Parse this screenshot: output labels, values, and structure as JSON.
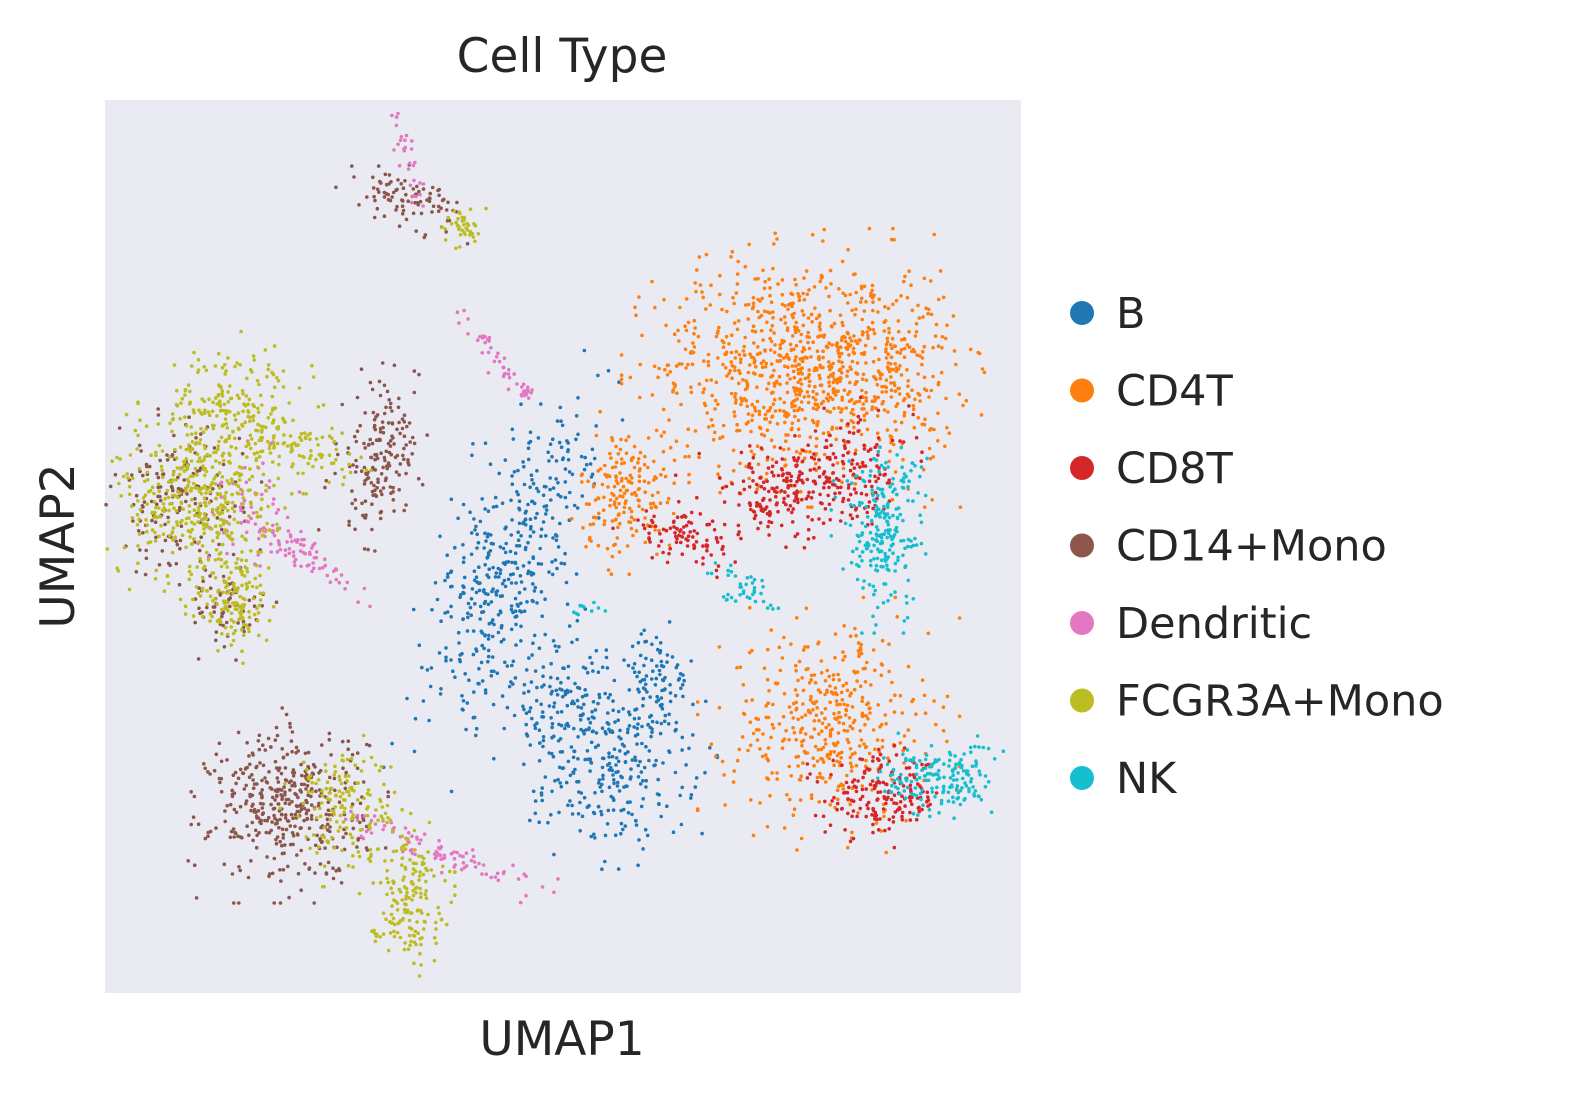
{
  "chart_data": {
    "type": "scatter",
    "title": "Cell Type",
    "xlabel": "UMAP1",
    "ylabel": "UMAP2",
    "xlim": [
      0,
      100
    ],
    "ylim": [
      0,
      100
    ],
    "grid": false,
    "ticks": false,
    "background": "#eaeaf2",
    "legend_placement": "center-right outside",
    "series": [
      {
        "name": "B",
        "color": "#1f77b4",
        "clusters": [
          {
            "cx": 44,
            "cy": 48,
            "sx": 3.2,
            "sy": 10,
            "n": 420,
            "rot": -0.35
          },
          {
            "cx": 56,
            "cy": 25,
            "sx": 4.2,
            "sy": 4.2,
            "n": 260,
            "rot": 0.2
          },
          {
            "cx": 60,
            "cy": 35,
            "sx": 2.2,
            "sy": 3.0,
            "n": 80,
            "rot": 0
          },
          {
            "cx": 50,
            "cy": 33,
            "sx": 3.5,
            "sy": 4.0,
            "n": 150,
            "rot": -0.6
          }
        ]
      },
      {
        "name": "CD4T",
        "color": "#ff7f0e",
        "clusters": [
          {
            "cx": 72,
            "cy": 70,
            "sx": 6.0,
            "sy": 6.0,
            "n": 520,
            "rot": 0
          },
          {
            "cx": 83,
            "cy": 70,
            "sx": 5.0,
            "sy": 6.0,
            "n": 480,
            "rot": 0
          },
          {
            "cx": 57,
            "cy": 56,
            "sx": 2.6,
            "sy": 3.5,
            "n": 180,
            "rot": 0
          },
          {
            "cx": 79,
            "cy": 30,
            "sx": 5.5,
            "sy": 5.5,
            "n": 420,
            "rot": 0
          }
        ]
      },
      {
        "name": "CD8T",
        "color": "#d62728",
        "clusters": [
          {
            "cx": 74,
            "cy": 56,
            "sx": 4.5,
            "sy": 2.5,
            "n": 190,
            "rot": 0
          },
          {
            "cx": 82,
            "cy": 59,
            "sx": 3.0,
            "sy": 3.0,
            "n": 120,
            "rot": 0
          },
          {
            "cx": 63,
            "cy": 51,
            "sx": 3.0,
            "sy": 1.2,
            "n": 90,
            "rot": -0.3
          },
          {
            "cx": 85,
            "cy": 22,
            "sx": 3.2,
            "sy": 2.2,
            "n": 180,
            "rot": 0
          }
        ]
      },
      {
        "name": "CD14+Mono",
        "color": "#8c564b",
        "clusters": [
          {
            "cx": 30,
            "cy": 60,
            "sx": 2.0,
            "sy": 4.0,
            "n": 180,
            "rot": -0.2
          },
          {
            "cx": 33,
            "cy": 89,
            "sx": 3.0,
            "sy": 1.4,
            "n": 90,
            "rot": -0.3
          },
          {
            "cx": 20,
            "cy": 21,
            "sx": 4.2,
            "sy": 4.2,
            "n": 420,
            "rot": 0
          },
          {
            "cx": 8,
            "cy": 55,
            "sx": 3.5,
            "sy": 4.0,
            "n": 160,
            "rot": 0
          },
          {
            "cx": 13,
            "cy": 43,
            "sx": 2.2,
            "sy": 2.2,
            "n": 60,
            "rot": 0
          }
        ]
      },
      {
        "name": "Dendritic",
        "color": "#e377c2",
        "clusters": [
          {
            "cx": 33,
            "cy": 94,
            "sx": 0.5,
            "sy": 3.0,
            "n": 30,
            "rot": 0.25
          },
          {
            "cx": 42,
            "cy": 72,
            "sx": 0.6,
            "sy": 3.0,
            "n": 35,
            "rot": 0.6
          },
          {
            "cx": 46,
            "cy": 67,
            "sx": 0.4,
            "sy": 0.8,
            "n": 15,
            "rot": 0
          },
          {
            "cx": 22,
            "cy": 49,
            "sx": 0.8,
            "sy": 4.0,
            "n": 70,
            "rot": 1.0
          },
          {
            "cx": 36,
            "cy": 16,
            "sx": 0.8,
            "sy": 5.5,
            "n": 90,
            "rot": 1.2
          },
          {
            "cx": 16,
            "cy": 54,
            "sx": 3.0,
            "sy": 3.0,
            "n": 60,
            "rot": 0
          }
        ]
      },
      {
        "name": "FCGR3A+Mono",
        "color": "#bcbd22",
        "clusters": [
          {
            "cx": 14,
            "cy": 65,
            "sx": 4.0,
            "sy": 3.5,
            "n": 230,
            "rot": 0
          },
          {
            "cx": 10,
            "cy": 55,
            "sx": 4.2,
            "sy": 4.2,
            "n": 380,
            "rot": 0
          },
          {
            "cx": 14,
            "cy": 44,
            "sx": 2.0,
            "sy": 3.0,
            "n": 150,
            "rot": 0
          },
          {
            "cx": 22,
            "cy": 61,
            "sx": 3.0,
            "sy": 1.5,
            "n": 80,
            "rot": -0.4
          },
          {
            "cx": 39,
            "cy": 86,
            "sx": 1.0,
            "sy": 1.0,
            "n": 40,
            "rot": 0
          },
          {
            "cx": 33,
            "cy": 11,
            "sx": 2.0,
            "sy": 3.5,
            "n": 170,
            "rot": 0
          },
          {
            "cx": 26,
            "cy": 21,
            "sx": 3.0,
            "sy": 3.5,
            "n": 150,
            "rot": 0
          }
        ]
      },
      {
        "name": "NK",
        "color": "#17becf",
        "clusters": [
          {
            "cx": 85,
            "cy": 52,
            "sx": 2.2,
            "sy": 4.5,
            "n": 230,
            "rot": 0
          },
          {
            "cx": 70,
            "cy": 45,
            "sx": 2.2,
            "sy": 1.0,
            "n": 40,
            "rot": -0.5
          },
          {
            "cx": 91,
            "cy": 24,
            "sx": 3.0,
            "sy": 2.0,
            "n": 170,
            "rot": 0
          },
          {
            "cx": 53,
            "cy": 43,
            "sx": 1.0,
            "sy": 0.5,
            "n": 10,
            "rot": 0
          }
        ]
      }
    ]
  }
}
